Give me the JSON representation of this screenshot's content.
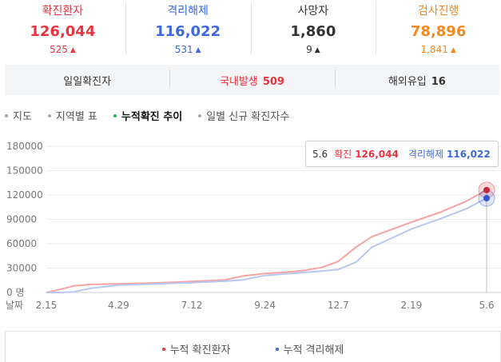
{
  "stats": [
    {
      "label": "확진환자",
      "value": "126,044",
      "delta": "525",
      "color": "#e8343f",
      "delta_color": "#e8343f"
    },
    {
      "label": "격리해제",
      "value": "116,022",
      "delta": "531",
      "color": "#3c6ad8",
      "delta_color": "#3c6ad8"
    },
    {
      "label": "사망자",
      "value": "1,860",
      "delta": "9",
      "color": "#333333",
      "delta_color": "#333333"
    },
    {
      "label": "검사진행",
      "value": "78,896",
      "delta": "1,841",
      "color": "#f08a24",
      "delta_color": "#f08a24"
    }
  ],
  "summary": {
    "daily": {
      "label": "일일확진자"
    },
    "domestic": {
      "label": "국내발생",
      "value": "509",
      "color": "#e8343f"
    },
    "overseas": {
      "label": "해외유입",
      "value": "16",
      "color": "#333333"
    }
  },
  "tabs": [
    {
      "label": "지도",
      "active": false
    },
    {
      "label": "지역별 표",
      "active": false
    },
    {
      "label": "누적확진 추이",
      "active": true
    },
    {
      "label": "일별 신규 확진자수",
      "active": false
    }
  ],
  "tooltip": {
    "date": "5.6",
    "confirmed_label": "확진",
    "confirmed_value": "126,044",
    "released_label": "격리해제",
    "released_value": "116,022"
  },
  "chart_data": {
    "type": "line",
    "x_label": "날짜",
    "x_ticks": [
      "2.15",
      "4.29",
      "7.12",
      "9.24",
      "12.7",
      "2.19",
      "5.6"
    ],
    "y_ticks": [
      "0 명",
      "30000",
      "60000",
      "90000",
      "120000",
      "150000",
      "180000"
    ],
    "ylim": [
      0,
      180000
    ],
    "grid": true,
    "legend_position": "bottom",
    "series": [
      {
        "name": "누적 확진환자",
        "color": "#f5a3a3",
        "values": [
          [
            "2.15",
            28
          ],
          [
            "3.1",
            3736
          ],
          [
            "3.15",
            8162
          ],
          [
            "4.1",
            9887
          ],
          [
            "4.29",
            10761
          ],
          [
            "6.1",
            11541
          ],
          [
            "7.12",
            13479
          ],
          [
            "8.15",
            15515
          ],
          [
            "9.1",
            20182
          ],
          [
            "9.24",
            23341
          ],
          [
            "10.15",
            24988
          ],
          [
            "11.1",
            26732
          ],
          [
            "11.20",
            30733
          ],
          [
            "12.7",
            38161
          ],
          [
            "12.25",
            55902
          ],
          [
            "1.10",
            68664
          ],
          [
            "2.19",
            86576
          ],
          [
            "3.20",
            98665
          ],
          [
            "4.15",
            112117
          ],
          [
            "5.6",
            126044
          ]
        ]
      },
      {
        "name": "누적 격리해제",
        "color": "#b9c6ee",
        "values": [
          [
            "2.15",
            10
          ],
          [
            "3.1",
            31
          ],
          [
            "3.15",
            834
          ],
          [
            "4.1",
            5228
          ],
          [
            "4.29",
            9059
          ],
          [
            "6.1",
            10446
          ],
          [
            "7.12",
            12144
          ],
          [
            "8.15",
            14006
          ],
          [
            "9.1",
            15356
          ],
          [
            "9.24",
            20978
          ],
          [
            "10.15",
            22912
          ],
          [
            "11.1",
            24448
          ],
          [
            "11.20",
            26325
          ],
          [
            "12.7",
            28352
          ],
          [
            "12.25",
            37172
          ],
          [
            "1.10",
            55758
          ],
          [
            "2.19",
            78142
          ],
          [
            "3.20",
            90686
          ],
          [
            "4.15",
            102705
          ],
          [
            "5.6",
            116022
          ]
        ]
      }
    ],
    "highlight": {
      "x": "5.6",
      "confirmed": 126044,
      "released": 116022
    },
    "series_colors": {
      "confirmed_point": "#c4283a",
      "released_point": "#2f57c6"
    }
  },
  "legend": [
    {
      "label": "누적 확진환자",
      "color": "#e8343f"
    },
    {
      "label": "누적 격리해제",
      "color": "#3c6ad8"
    }
  ]
}
